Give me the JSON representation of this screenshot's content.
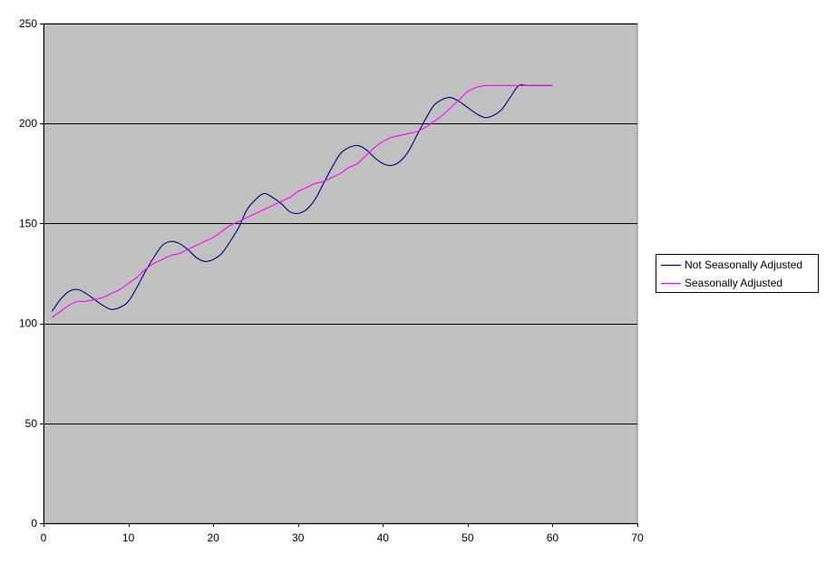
{
  "chart_data": {
    "type": "line",
    "title": "",
    "xlabel": "",
    "ylabel": "",
    "xlim": [
      0,
      70
    ],
    "ylim": [
      0,
      250
    ],
    "xticks": [
      0,
      10,
      20,
      30,
      40,
      50,
      60,
      70
    ],
    "yticks": [
      0,
      50,
      100,
      150,
      200,
      250
    ],
    "grid": "horizontal",
    "background": "#c0c0c0",
    "legend_position": "right",
    "x": [
      1,
      2,
      3,
      4,
      5,
      6,
      7,
      8,
      9,
      10,
      11,
      12,
      13,
      14,
      15,
      16,
      17,
      18,
      19,
      20,
      21,
      22,
      23,
      24,
      25,
      26,
      27,
      28,
      29,
      30,
      31,
      32,
      33,
      34,
      35,
      36,
      37,
      38,
      39,
      40,
      41,
      42,
      43,
      44,
      45,
      46,
      47,
      48,
      49,
      50,
      51,
      52,
      53,
      54,
      55,
      56,
      57,
      58,
      59,
      60
    ],
    "series": [
      {
        "name": "Not Seasonally Adjusted",
        "color": "#000080",
        "values": [
          106,
          112,
          116,
          117,
          115,
          112,
          109,
          107,
          108,
          111,
          118,
          126,
          133,
          139,
          141,
          140,
          137,
          133,
          131,
          132,
          135,
          141,
          148,
          157,
          162,
          165,
          163,
          160,
          156,
          155,
          157,
          162,
          170,
          178,
          185,
          188,
          189,
          187,
          183,
          180,
          179,
          181,
          186,
          194,
          202,
          209,
          212,
          213,
          211,
          208,
          205,
          203,
          204,
          207,
          213,
          219,
          219,
          219,
          219,
          219
        ]
      },
      {
        "name": "Seasonally Adjusted",
        "color": "#ff00ff",
        "values": [
          103,
          106,
          109,
          111,
          111,
          112,
          113,
          115,
          117,
          120,
          123,
          127,
          130,
          132,
          134,
          135,
          137,
          139,
          141,
          143,
          146,
          149,
          151,
          153,
          155,
          157,
          159,
          161,
          163,
          166,
          168,
          170,
          171,
          173,
          175,
          178,
          180,
          184,
          188,
          191,
          193,
          194,
          195,
          196,
          198,
          201,
          204,
          208,
          212,
          216,
          218,
          219,
          219,
          219,
          219,
          219,
          219,
          219,
          219,
          219
        ]
      }
    ]
  }
}
